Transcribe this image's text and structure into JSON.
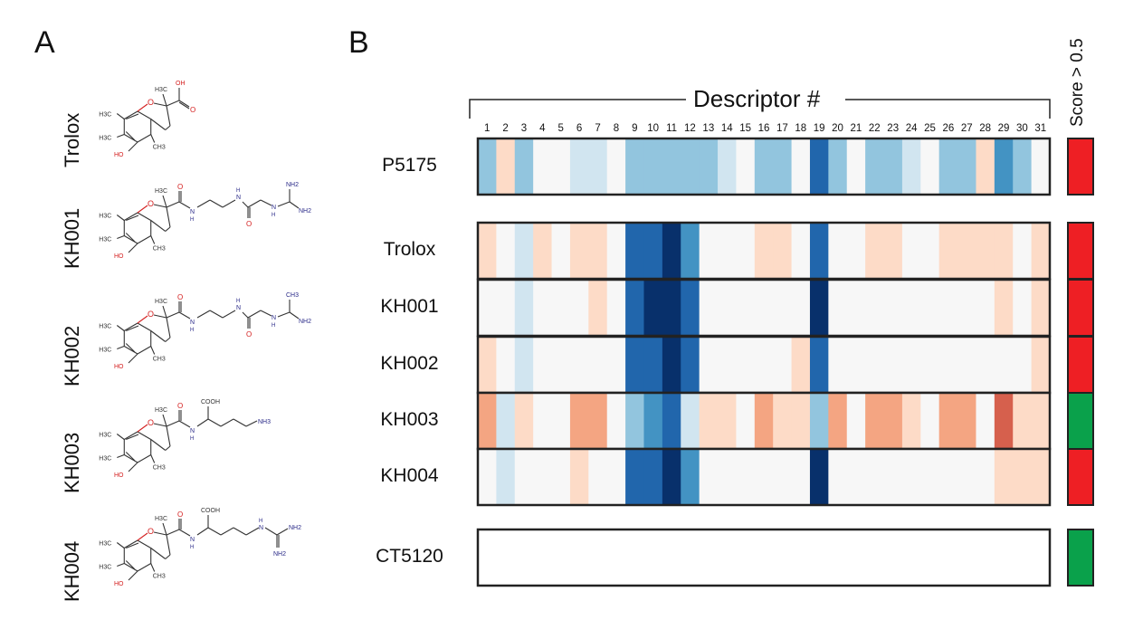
{
  "panels": {
    "a": "A",
    "b": "B"
  },
  "compounds": [
    {
      "name": "Trolox",
      "tail_label": "OH"
    },
    {
      "name": "KH001",
      "tail_label": "NH2+"
    },
    {
      "name": "KH002",
      "tail_label": "NH2+"
    },
    {
      "name": "KH003",
      "tail_label": "NH3+"
    },
    {
      "name": "KH004",
      "tail_label": "NH2"
    }
  ],
  "chem_labels": {
    "h3c": "H3C",
    "ch3": "CH3",
    "oh": "OH",
    "ho": "HO",
    "o": "O",
    "n": "N",
    "h": "H",
    "cooh": "COOH",
    "nh2": "NH2",
    "ch3_top": "CH3",
    "nh3": "NH3"
  },
  "heatmap": {
    "title": "Descriptor #",
    "descriptors": [
      "1",
      "2",
      "3",
      "4",
      "5",
      "6",
      "7",
      "8",
      "9",
      "10",
      "11",
      "12",
      "13",
      "14",
      "15",
      "16",
      "17",
      "18",
      "19",
      "20",
      "21",
      "22",
      "23",
      "24",
      "25",
      "26",
      "27",
      "28",
      "29",
      "30",
      "31"
    ],
    "score_label": "Score > 0.5",
    "score_colors": {
      "above": "#ee1f24",
      "below": "#0aa14b"
    },
    "rows": [
      {
        "label": "P5175",
        "score": "above",
        "values": [
          -2,
          1,
          -2,
          0,
          0,
          -1,
          -1,
          0,
          -2,
          -2,
          -2,
          -2,
          -2,
          -1,
          0,
          -2,
          -2,
          0,
          -4,
          -2,
          0,
          -2,
          -2,
          -1,
          0,
          -2,
          -2,
          1,
          -3,
          -2,
          0
        ]
      },
      {
        "label": "Trolox",
        "score": "above",
        "values": [
          1,
          0,
          -1,
          1,
          0,
          1,
          1,
          0,
          -4,
          -4,
          -5,
          -3,
          0,
          0,
          0,
          1,
          1,
          0,
          -4,
          0,
          0,
          1,
          1,
          0,
          0,
          1,
          1,
          1,
          1,
          0,
          1
        ]
      },
      {
        "label": "KH001",
        "score": "above",
        "values": [
          0,
          0,
          -1,
          0,
          0,
          0,
          1,
          0,
          -4,
          -5,
          -5,
          -4,
          0,
          0,
          0,
          0,
          0,
          0,
          -5,
          0,
          0,
          0,
          0,
          0,
          0,
          0,
          0,
          0,
          1,
          0,
          1
        ]
      },
      {
        "label": "KH002",
        "score": "above",
        "values": [
          1,
          0,
          -1,
          0,
          0,
          0,
          0,
          0,
          -4,
          -4,
          -5,
          -4,
          0,
          0,
          0,
          0,
          0,
          1,
          -4,
          0,
          0,
          0,
          0,
          0,
          0,
          0,
          0,
          0,
          0,
          0,
          1
        ]
      },
      {
        "label": "KH003",
        "score": "below",
        "values": [
          2,
          -1,
          1,
          0,
          0,
          2,
          2,
          0,
          -2,
          -3,
          -4,
          -1,
          1,
          1,
          0,
          2,
          1,
          1,
          -2,
          2,
          0,
          2,
          2,
          1,
          0,
          2,
          2,
          0,
          3,
          1,
          1
        ]
      },
      {
        "label": "KH004",
        "score": "above",
        "values": [
          0,
          -1,
          0,
          0,
          0,
          1,
          0,
          0,
          -4,
          -4,
          -5,
          -3,
          0,
          0,
          0,
          0,
          0,
          0,
          -5,
          0,
          0,
          0,
          0,
          0,
          0,
          0,
          0,
          0,
          1,
          1,
          1
        ]
      },
      {
        "label": "CT5120",
        "score": "below",
        "values": []
      }
    ],
    "palette": {
      "-5": "#08306b",
      "-4": "#2166ac",
      "-3": "#4393c3",
      "-2": "#92c5de",
      "-1": "#d1e5f0",
      "0": "#f7f7f7",
      "1": "#fddbc7",
      "2": "#f4a582",
      "3": "#d6604d"
    }
  }
}
